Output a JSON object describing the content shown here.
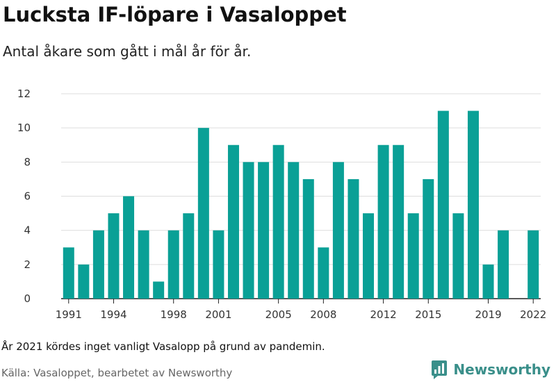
{
  "header": {
    "title": "Lucksta IF-löpare i Vasaloppet",
    "subtitle": "Antal åkare som gått i mål år för år."
  },
  "footer": {
    "note": "År 2021 kördes inget vanligt Vasalopp på grund av pandemin.",
    "source": "Källa: Vasaloppet, bearbetet av Newsworthy",
    "brand": "Newsworthy"
  },
  "colors": {
    "bar": "#0aa096",
    "grid": "#dddddd",
    "brand": "#3a8f8a"
  },
  "chart_data": {
    "type": "bar",
    "title": "",
    "xlabel": "",
    "ylabel": "",
    "ylim": [
      0,
      12
    ],
    "yticks": [
      0,
      2,
      4,
      6,
      8,
      10,
      12
    ],
    "xticks": [
      1991,
      1994,
      1998,
      2001,
      2005,
      2008,
      2012,
      2015,
      2019,
      2022
    ],
    "grid": true,
    "x": [
      1991,
      1992,
      1993,
      1994,
      1995,
      1996,
      1997,
      1998,
      1999,
      2000,
      2001,
      2002,
      2003,
      2004,
      2005,
      2006,
      2007,
      2008,
      2009,
      2010,
      2011,
      2012,
      2013,
      2014,
      2015,
      2016,
      2017,
      2018,
      2019,
      2020,
      2021,
      2022
    ],
    "values": [
      3,
      2,
      4,
      5,
      6,
      4,
      1,
      4,
      5,
      10,
      4,
      9,
      8,
      8,
      9,
      8,
      7,
      3,
      8,
      7,
      5,
      9,
      9,
      5,
      7,
      11,
      5,
      11,
      2,
      4,
      null,
      4
    ]
  }
}
